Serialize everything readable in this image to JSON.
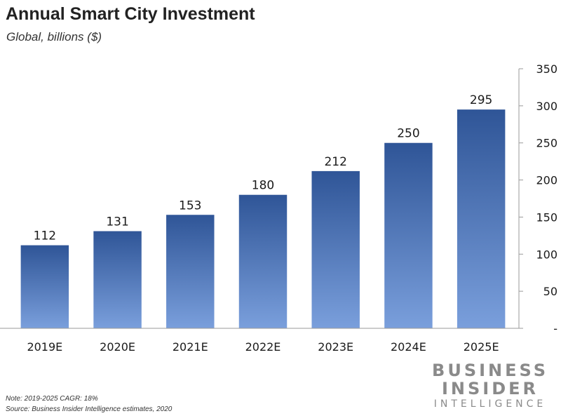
{
  "chart_data": {
    "type": "bar",
    "title": "Annual Smart City Investment",
    "subtitle": "Global, billions ($)",
    "categories": [
      "2019E",
      "2020E",
      "2021E",
      "2022E",
      "2023E",
      "2024E",
      "2025E"
    ],
    "values": [
      112,
      131,
      153,
      180,
      212,
      250,
      295
    ],
    "ylim": [
      0,
      350
    ],
    "yticks": [
      0,
      50,
      100,
      150,
      200,
      250,
      300,
      350
    ],
    "ytick_labels": [
      "-",
      "50",
      "100",
      "150",
      "200",
      "250",
      "300",
      "350"
    ],
    "y_axis_position": "right",
    "grid": false,
    "colors": {
      "bar_top": "#2f5597",
      "bar_bottom": "#7a9fdc"
    }
  },
  "notes": {
    "cagr": "Note: 2019-2025 CAGR: 18%",
    "source": "Source: Business Insider Intelligence estimates, 2020"
  },
  "logo": {
    "line1": "BUSINESS",
    "line2": "INSIDER",
    "line3": "INTELLIGENCE"
  }
}
